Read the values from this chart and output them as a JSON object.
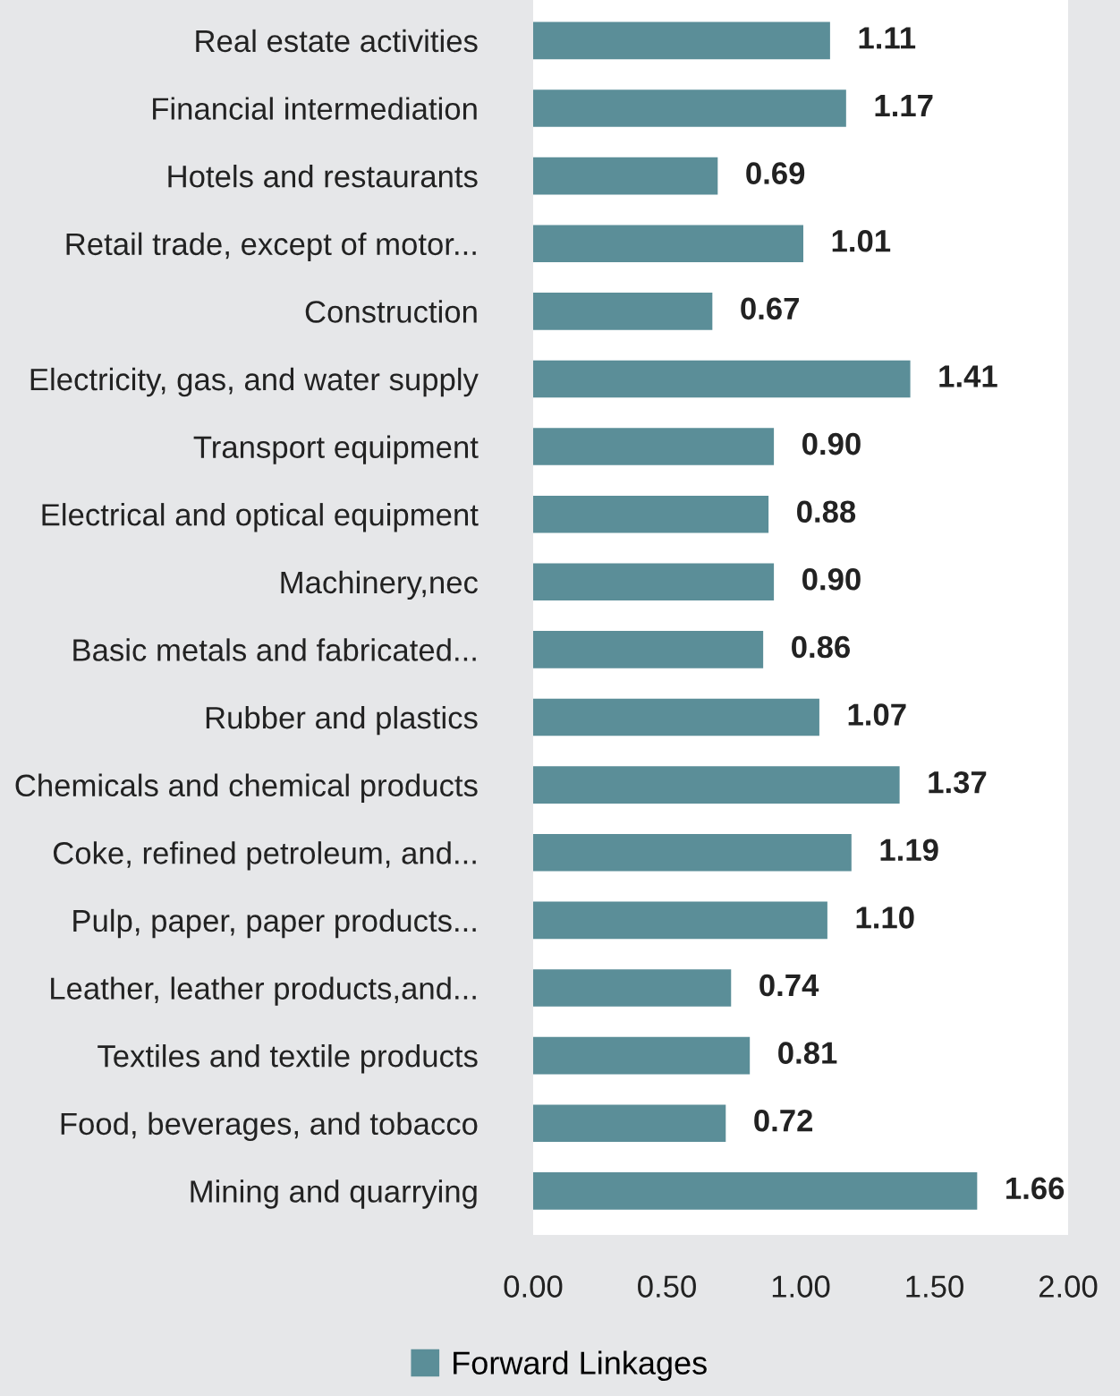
{
  "chart_data": {
    "type": "bar",
    "orientation": "horizontal",
    "categories": [
      "Real estate activities",
      "Financial intermediation",
      "Hotels and restaurants",
      "Retail trade, except of motor...",
      "Construction",
      "Electricity, gas, and water supply",
      "Transport equipment",
      "Electrical and optical equipment",
      "Machinery,nec",
      "Basic metals and fabricated...",
      "Rubber and plastics",
      "Chemicals and chemical products",
      "Coke, refined petroleum, and...",
      "Pulp, paper, paper products...",
      "Leather, leather products,and...",
      "Textiles and textile products",
      "Food, beverages, and tobacco",
      "Mining and quarrying"
    ],
    "series": [
      {
        "name": "Forward Linkages",
        "color": "#5b8e98",
        "values": [
          1.11,
          1.17,
          0.69,
          1.01,
          0.67,
          1.41,
          0.9,
          0.88,
          0.9,
          0.86,
          1.07,
          1.37,
          1.19,
          1.1,
          0.74,
          0.81,
          0.72,
          1.66
        ]
      }
    ],
    "value_labels": [
      "1.11",
      "1.17",
      "0.69",
      "1.01",
      "0.67",
      "1.41",
      "0.90",
      "0.88",
      "0.90",
      "0.86",
      "1.07",
      "1.37",
      "1.19",
      "1.10",
      "0.74",
      "0.81",
      "0.72",
      "1.66"
    ],
    "xlim": [
      0,
      2
    ],
    "xticks": [
      {
        "value": 0,
        "label": "0.00"
      },
      {
        "value": 0.5,
        "label": "0.50"
      },
      {
        "value": 1,
        "label": "1.00"
      },
      {
        "value": 1.5,
        "label": "1.50"
      },
      {
        "value": 2,
        "label": "2.00"
      }
    ],
    "grid": false,
    "legend": "bottom"
  }
}
